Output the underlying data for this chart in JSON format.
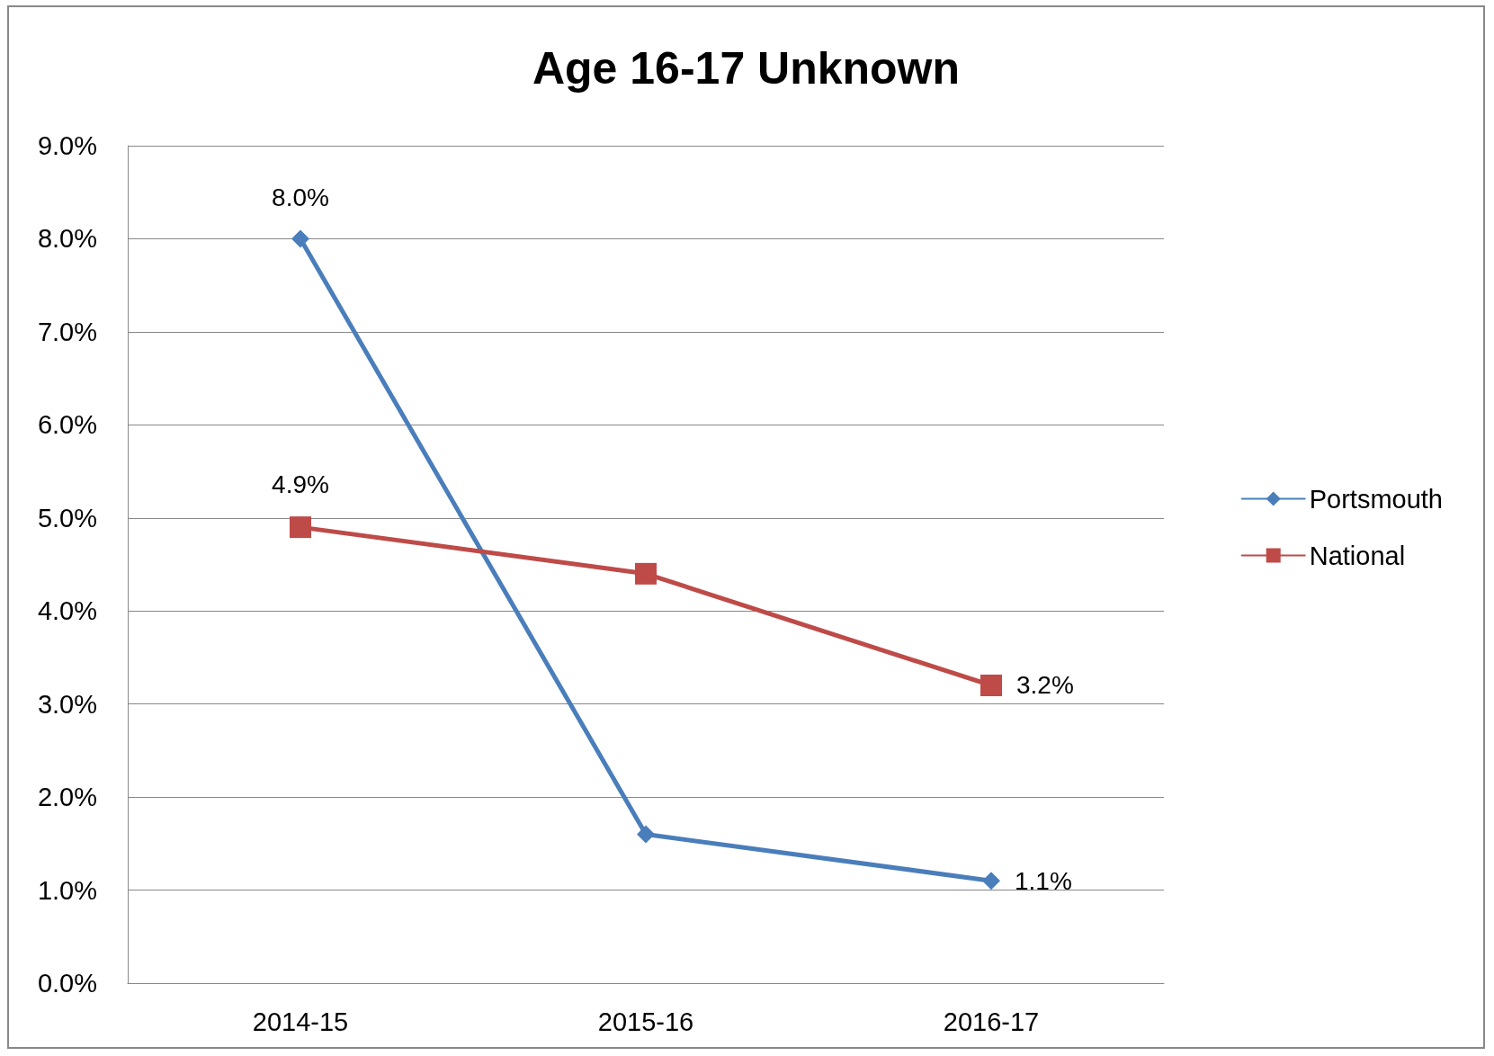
{
  "chart_data": {
    "type": "line",
    "title": "Age 16-17 Unknown",
    "categories": [
      "2014-15",
      "2015-16",
      "2016-17"
    ],
    "series": [
      {
        "name": "Portsmouth",
        "color": "#4a7ebb",
        "marker": "diamond",
        "values": [
          8.0,
          1.6,
          1.1
        ],
        "value_labels": [
          "8.0%",
          null,
          "1.1%"
        ]
      },
      {
        "name": "National",
        "color": "#be4b48",
        "marker": "square",
        "values": [
          4.9,
          4.4,
          3.2
        ],
        "value_labels": [
          "4.9%",
          null,
          "3.2%"
        ]
      }
    ],
    "ylim": [
      0,
      9
    ],
    "yticks": [
      {
        "value": 0,
        "label": "0.0%"
      },
      {
        "value": 1,
        "label": "1.0%"
      },
      {
        "value": 2,
        "label": "2.0%"
      },
      {
        "value": 3,
        "label": "3.0%"
      },
      {
        "value": 4,
        "label": "4.0%"
      },
      {
        "value": 5,
        "label": "5.0%"
      },
      {
        "value": 6,
        "label": "6.0%"
      },
      {
        "value": 7,
        "label": "7.0%"
      },
      {
        "value": 8,
        "label": "8.0%"
      },
      {
        "value": 9,
        "label": "9.0%"
      }
    ],
    "grid": "y",
    "legend": "right",
    "line_style": "solid"
  }
}
